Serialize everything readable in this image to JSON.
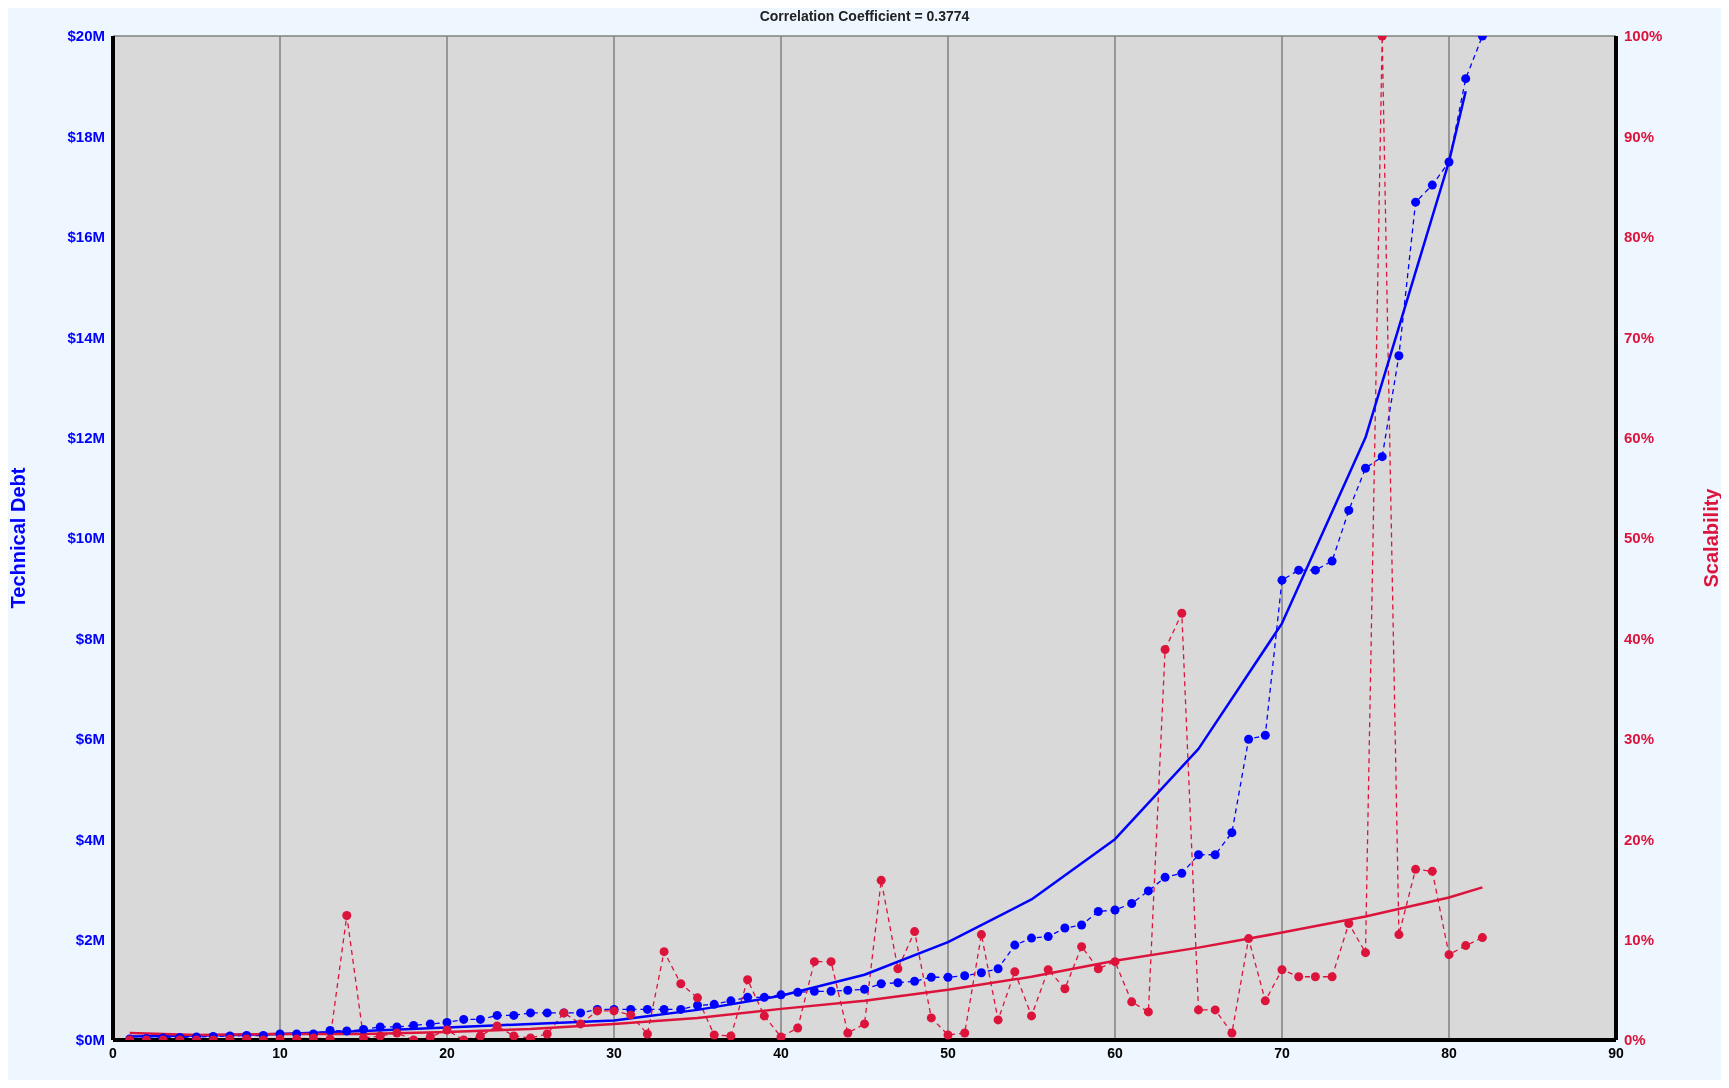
{
  "chart_data": {
    "type": "line",
    "title": "Correlation Coefficient = 0.3774",
    "ylabel": "Technical Debt",
    "y2label": "Scalability",
    "xlim": [
      0,
      90
    ],
    "xticks": [
      0,
      10,
      20,
      30,
      40,
      50,
      60,
      70,
      80,
      90
    ],
    "ylim": [
      0,
      20
    ],
    "yticks": [
      {
        "value": 0,
        "label": "$0M"
      },
      {
        "value": 2,
        "label": "$2M"
      },
      {
        "value": 4,
        "label": "$4M"
      },
      {
        "value": 6,
        "label": "$6M"
      },
      {
        "value": 8,
        "label": "$8M"
      },
      {
        "value": 10,
        "label": "$10M"
      },
      {
        "value": 12,
        "label": "$12M"
      },
      {
        "value": 14,
        "label": "$14M"
      },
      {
        "value": 16,
        "label": "$16M"
      },
      {
        "value": 18,
        "label": "$18M"
      },
      {
        "value": 20,
        "label": "$20M"
      }
    ],
    "y2lim": [
      0,
      100
    ],
    "y2ticks": [
      {
        "value": 0,
        "label": "0%"
      },
      {
        "value": 10,
        "label": "10%"
      },
      {
        "value": 20,
        "label": "20%"
      },
      {
        "value": 30,
        "label": "30%"
      },
      {
        "value": 40,
        "label": "40%"
      },
      {
        "value": 50,
        "label": "50%"
      },
      {
        "value": 60,
        "label": "60%"
      },
      {
        "value": 70,
        "label": "70%"
      },
      {
        "value": 80,
        "label": "80%"
      },
      {
        "value": 90,
        "label": "90%"
      },
      {
        "value": 100,
        "label": "100%"
      }
    ],
    "grid": true,
    "series": [
      {
        "color": "#0000ff",
        "marker": "circle",
        "line_style": "dashed",
        "x": [
          1,
          2,
          3,
          4,
          5,
          6,
          7,
          8,
          9,
          10,
          11,
          12,
          13,
          14,
          15,
          16,
          17,
          18,
          19,
          20,
          21,
          22,
          23,
          24,
          25,
          26,
          27,
          28,
          29,
          30,
          31,
          32,
          33,
          34,
          35,
          36,
          37,
          38,
          39,
          40,
          41,
          42,
          43,
          44,
          45,
          46,
          47,
          48,
          49,
          50,
          51,
          52,
          53,
          54,
          55,
          56,
          57,
          58,
          59,
          60,
          61,
          62,
          63,
          64,
          65,
          66,
          67,
          68,
          69,
          70,
          71,
          72,
          73,
          74,
          75,
          76,
          77,
          78,
          79,
          80,
          81,
          82
        ],
        "values": [
          0.02,
          0.03,
          0.04,
          0.05,
          0.06,
          0.07,
          0.08,
          0.09,
          0.09,
          0.12,
          0.12,
          0.12,
          0.19,
          0.18,
          0.21,
          0.26,
          0.26,
          0.29,
          0.32,
          0.35,
          0.41,
          0.41,
          0.49,
          0.49,
          0.54,
          0.54,
          0.54,
          0.54,
          0.61,
          0.61,
          0.61,
          0.61,
          0.61,
          0.61,
          0.69,
          0.71,
          0.78,
          0.85,
          0.85,
          0.9,
          0.95,
          0.97,
          0.97,
          0.99,
          1.01,
          1.12,
          1.14,
          1.17,
          1.25,
          1.25,
          1.28,
          1.34,
          1.42,
          1.89,
          2.03,
          2.06,
          2.23,
          2.29,
          2.56,
          2.59,
          2.72,
          2.97,
          3.24,
          3.32,
          3.69,
          3.69,
          4.13,
          5.99,
          6.07,
          9.16,
          9.36,
          9.36,
          9.54,
          10.55,
          11.39,
          11.62,
          13.63,
          16.69,
          17.03,
          17.49,
          19.15,
          20.0
        ]
      },
      {
        "color": "#dc143c",
        "axis": "y2",
        "marker": "circle",
        "line_style": "dashed",
        "x": [
          1,
          2,
          3,
          4,
          5,
          6,
          7,
          8,
          9,
          10,
          11,
          12,
          13,
          14,
          15,
          16,
          17,
          18,
          19,
          20,
          21,
          22,
          23,
          24,
          25,
          26,
          27,
          28,
          29,
          30,
          31,
          32,
          33,
          34,
          35,
          36,
          37,
          38,
          39,
          40,
          41,
          42,
          43,
          44,
          45,
          46,
          47,
          48,
          49,
          50,
          51,
          52,
          53,
          54,
          55,
          56,
          57,
          58,
          59,
          60,
          61,
          62,
          63,
          64,
          65,
          66,
          67,
          68,
          69,
          70,
          71,
          72,
          73,
          74,
          75,
          76,
          77,
          78,
          79,
          80,
          81,
          82
        ],
        "values": [
          0,
          0,
          0,
          0,
          0,
          0,
          0.1,
          0.1,
          0,
          0.1,
          0.1,
          0.2,
          0.1,
          12.4,
          0.2,
          0.4,
          0.7,
          0,
          0.3,
          1.0,
          0,
          0.4,
          1.4,
          0.4,
          0.2,
          0.6,
          2.7,
          1.6,
          2.9,
          2.9,
          2.5,
          0.6,
          8.8,
          5.6,
          4.2,
          0.5,
          0.4,
          6.0,
          2.4,
          0.3,
          1.2,
          7.8,
          7.8,
          0.7,
          1.6,
          15.9,
          7.1,
          10.8,
          2.2,
          0.5,
          0.7,
          10.5,
          2.0,
          6.8,
          2.4,
          7.0,
          5.1,
          9.3,
          7.1,
          7.8,
          3.8,
          2.8,
          38.9,
          42.5,
          3.0,
          3.0,
          0.7,
          10.1,
          3.9,
          7.0,
          6.3,
          6.3,
          6.3,
          11.6,
          8.7,
          100,
          10.5,
          17.0,
          16.8,
          8.5,
          9.4,
          10.2
        ]
      },
      {
        "color": "#0000ff",
        "marker": "none",
        "line_style": "solid",
        "x": [
          1,
          5,
          10,
          15,
          20,
          25,
          30,
          35,
          40,
          45,
          50,
          55,
          60,
          65,
          70,
          75,
          80,
          81
        ],
        "values": [
          0.07,
          0.09,
          0.12,
          0.18,
          0.25,
          0.32,
          0.39,
          0.6,
          0.88,
          1.3,
          1.95,
          2.8,
          4.0,
          5.8,
          8.3,
          12.0,
          17.5,
          18.9
        ]
      },
      {
        "color": "#dc143c",
        "axis": "y2",
        "marker": "none",
        "line_style": "solid",
        "x": [
          1,
          5,
          10,
          15,
          20,
          25,
          30,
          35,
          40,
          45,
          50,
          55,
          60,
          65,
          70,
          75,
          80,
          82
        ],
        "values": [
          0.7,
          0.5,
          0.6,
          0.6,
          0.8,
          1.1,
          1.6,
          2.2,
          3.1,
          3.9,
          5.0,
          6.3,
          7.9,
          9.2,
          10.7,
          12.3,
          14.2,
          15.2
        ]
      }
    ]
  }
}
